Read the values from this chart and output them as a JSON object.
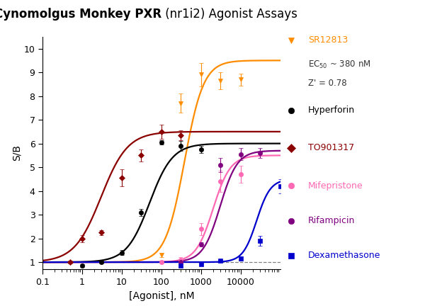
{
  "title_bold": "Cynomolgus Monkey PXR",
  "title_normal": " (nr1i2) Agonist Assays",
  "xlabel": "[Agonist], nM",
  "ylabel": "S/B",
  "xlim": [
    0.1,
    100000
  ],
  "ylim": [
    0.7,
    10.5
  ],
  "yticks": [
    1,
    2,
    3,
    4,
    5,
    6,
    7,
    8,
    9,
    10
  ],
  "xtick_labels": [
    "0.1",
    "1",
    "10",
    "100",
    "1000",
    "10000"
  ],
  "xtick_vals": [
    0.1,
    1,
    10,
    100,
    1000,
    10000
  ],
  "compounds": [
    {
      "name": "SR12813",
      "color": "#FF8C00",
      "marker": "v",
      "ec50": 380,
      "emax": 9.5,
      "hill": 1.8,
      "emin": 1.0,
      "data_x": [
        100,
        300,
        1000,
        3000,
        10000
      ],
      "data_y": [
        1.3,
        7.7,
        8.9,
        8.65,
        8.7
      ],
      "data_yerr": [
        0.1,
        0.4,
        0.5,
        0.35,
        0.25
      ]
    },
    {
      "name": "Hyperforin",
      "color": "#000000",
      "marker": "o",
      "ec50": 50,
      "emax": 6.0,
      "hill": 1.5,
      "emin": 1.0,
      "data_x": [
        1,
        3,
        10,
        30,
        100,
        300,
        1000
      ],
      "data_y": [
        0.85,
        1.0,
        1.4,
        3.1,
        6.05,
        5.9,
        5.75
      ],
      "data_yerr": [
        0.05,
        0.05,
        0.1,
        0.15,
        0.1,
        0.2,
        0.15
      ]
    },
    {
      "name": "TO901317",
      "color": "#8B0000",
      "marker": "D",
      "ec50": 3,
      "emax": 6.5,
      "hill": 1.3,
      "emin": 1.0,
      "data_x": [
        0.5,
        1,
        3,
        10,
        30,
        100,
        300
      ],
      "data_y": [
        1.0,
        2.0,
        2.25,
        4.55,
        5.5,
        6.5,
        6.35
      ],
      "data_yerr": [
        0.05,
        0.15,
        0.1,
        0.35,
        0.25,
        0.3,
        0.2
      ]
    },
    {
      "name": "Mifepristone",
      "color": "#FF69B4",
      "marker": "o",
      "ec50": 2000,
      "emax": 5.5,
      "hill": 2.0,
      "emin": 1.0,
      "data_x": [
        100,
        300,
        1000,
        3000,
        10000
      ],
      "data_y": [
        1.0,
        1.1,
        2.4,
        4.4,
        4.7
      ],
      "data_yerr": [
        0.05,
        0.1,
        0.25,
        0.45,
        0.35
      ]
    },
    {
      "name": "Rifampicin",
      "color": "#800080",
      "marker": "o",
      "ec50": 3000,
      "emax": 5.7,
      "hill": 2.0,
      "emin": 1.0,
      "data_x": [
        300,
        1000,
        3000,
        10000,
        30000
      ],
      "data_y": [
        1.0,
        1.75,
        5.1,
        5.55,
        5.6
      ],
      "data_yerr": [
        0.05,
        0.1,
        0.3,
        0.25,
        0.2
      ]
    },
    {
      "name": "Dexamethasone",
      "color": "#0000CD",
      "marker": "s",
      "ec50": 25000,
      "emax": 4.5,
      "hill": 2.5,
      "emin": 1.0,
      "data_x": [
        300,
        1000,
        3000,
        10000,
        30000,
        100000
      ],
      "data_y": [
        0.85,
        0.9,
        1.05,
        1.15,
        1.9,
        4.2
      ],
      "data_yerr": [
        0.05,
        0.05,
        0.05,
        0.1,
        0.2,
        0.3
      ]
    }
  ],
  "legend_colors": [
    "#FF8C00",
    "#000000",
    "#8B0000",
    "#FF69B4",
    "#800080",
    "#0000CD"
  ],
  "legend_names": [
    "SR12813",
    "Hyperforin",
    "TO901317",
    "Mifepristone",
    "Rifampicin",
    "Dexamethasone"
  ],
  "legend_markers": [
    "v",
    "o",
    "D",
    "o",
    "o",
    "s"
  ],
  "ec50_text": "EC",
  "zp_text": "Z' = 0.78",
  "bg_color": "#FFFFFF"
}
